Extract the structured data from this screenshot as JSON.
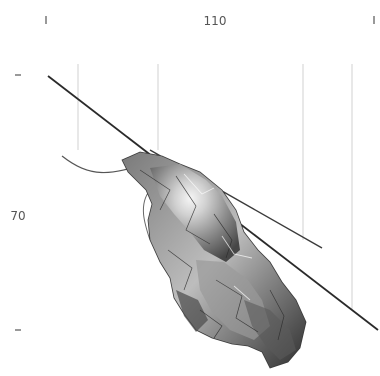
{
  "labels": {
    "top_value": "110",
    "left_value": "70"
  },
  "colors": {
    "background": "#ffffff",
    "line": "#2a2a2a",
    "faint_line": "#cfcfcf",
    "label": "#555555",
    "object_dark": "#3a3a3a",
    "object_mid": "#8a8a8a",
    "object_light": "#e8e8e8"
  }
}
